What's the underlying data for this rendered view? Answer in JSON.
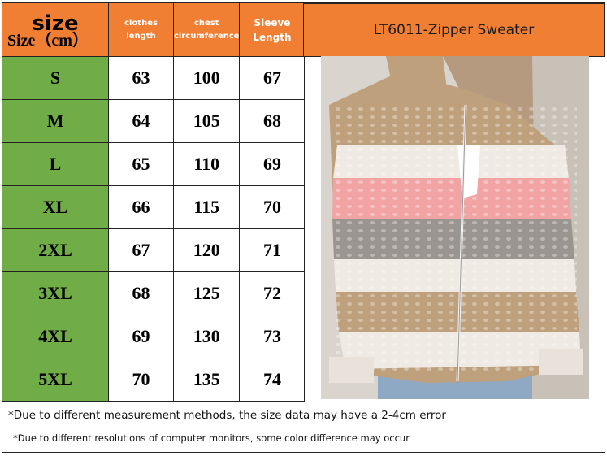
{
  "header": {
    "corner_big": "size",
    "corner_small": "Size（cm）",
    "columns": [
      {
        "line1": "clothes",
        "line2": "length"
      },
      {
        "line1": "chest",
        "line2": "circumference"
      },
      {
        "line1": "Sleeve",
        "line2": "Length"
      }
    ],
    "product_title": "LT6011-Zipper Sweater"
  },
  "rows": [
    {
      "size": "S",
      "clothes_length": "63",
      "chest": "100",
      "sleeve": "67"
    },
    {
      "size": "M",
      "clothes_length": "64",
      "chest": "105",
      "sleeve": "68"
    },
    {
      "size": "L",
      "clothes_length": "65",
      "chest": "110",
      "sleeve": "69"
    },
    {
      "size": "XL",
      "clothes_length": "66",
      "chest": "115",
      "sleeve": "70"
    },
    {
      "size": "2XL",
      "clothes_length": "67",
      "chest": "120",
      "sleeve": "71"
    },
    {
      "size": "3XL",
      "clothes_length": "68",
      "chest": "125",
      "sleeve": "72"
    },
    {
      "size": "4XL",
      "clothes_length": "69",
      "chest": "130",
      "sleeve": "73"
    },
    {
      "size": "5XL",
      "clothes_length": "70",
      "chest": "135",
      "sleeve": "74"
    }
  ],
  "notes": {
    "measurement": "*Due to different measurement methods, the size data may have a 2-4cm error",
    "color": "*Due to different resolutions of computer monitors, some color difference may occur"
  },
  "colors": {
    "header_orange": "#f07f33",
    "size_green": "#70ad47",
    "stripe_khaki": "#bfa07c",
    "stripe_white": "#efeae3",
    "stripe_pink": "#f2a4a4",
    "stripe_grey": "#9a9590"
  },
  "photo": {
    "icon": "zipper-sweater-photo"
  }
}
